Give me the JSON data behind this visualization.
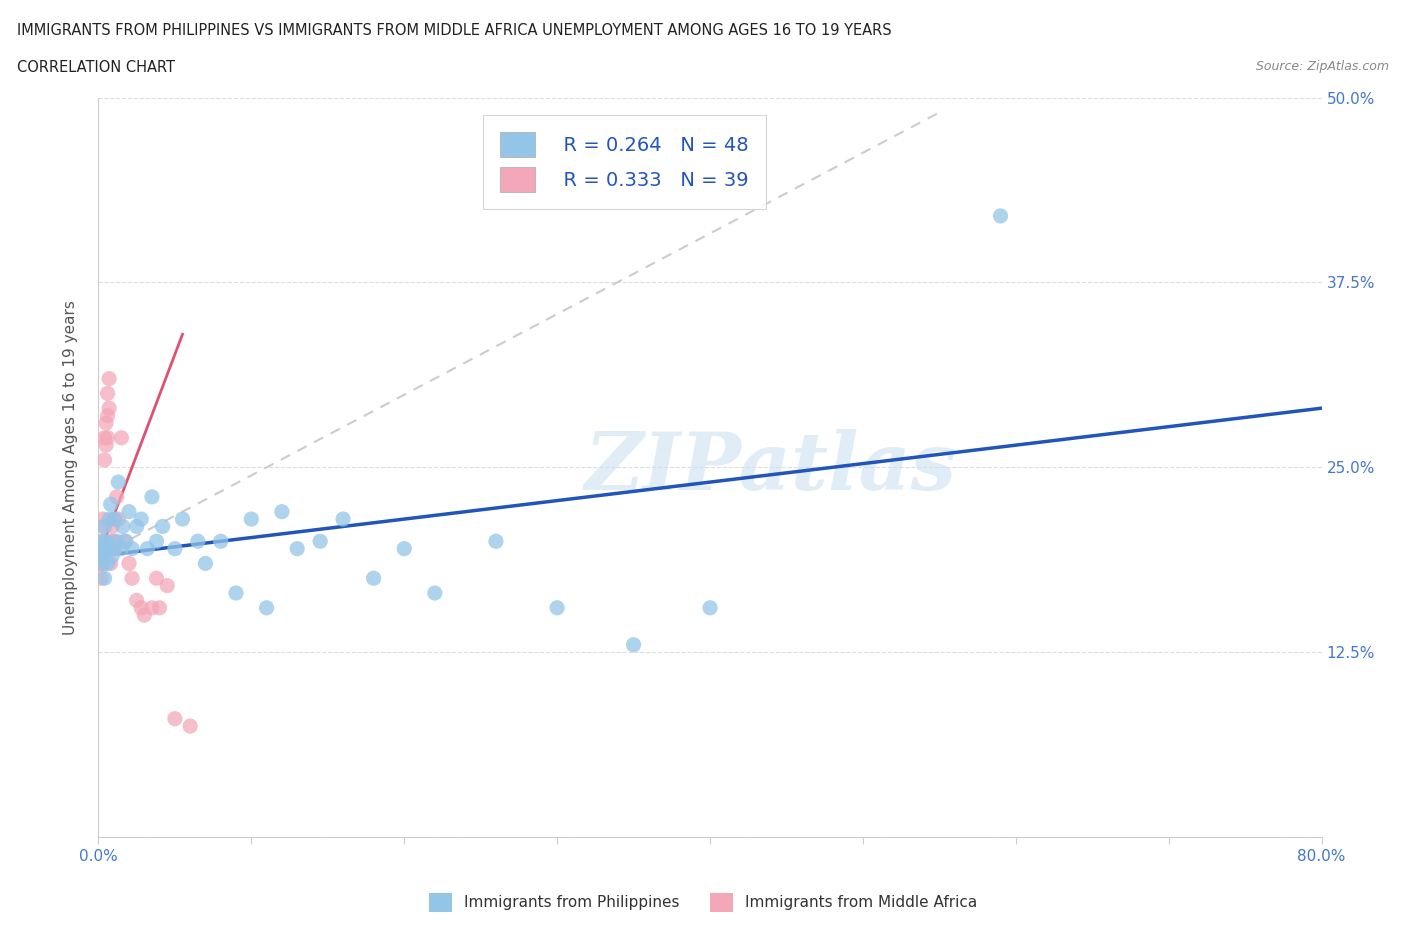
{
  "title_line1": "IMMIGRANTS FROM PHILIPPINES VS IMMIGRANTS FROM MIDDLE AFRICA UNEMPLOYMENT AMONG AGES 16 TO 19 YEARS",
  "title_line2": "CORRELATION CHART",
  "source": "Source: ZipAtlas.com",
  "ylabel": "Unemployment Among Ages 16 to 19 years",
  "xlim": [
    0,
    0.8
  ],
  "ylim": [
    0,
    0.5
  ],
  "xticks": [
    0.0,
    0.1,
    0.2,
    0.3,
    0.4,
    0.5,
    0.6,
    0.7,
    0.8
  ],
  "yticks": [
    0.0,
    0.125,
    0.25,
    0.375,
    0.5
  ],
  "blue_color": "#92c5e8",
  "pink_color": "#f4a7b9",
  "blue_line_color": "#2255bb",
  "pink_line_color": "#e05070",
  "gray_line_color": "#cccccc",
  "R_blue": 0.264,
  "N_blue": 48,
  "R_pink": 0.333,
  "N_pink": 39,
  "legend_label_blue": "Immigrants from Philippines",
  "legend_label_pink": "Immigrants from Middle Africa",
  "watermark": "ZIPatlas",
  "philippines_x": [
    0.001,
    0.002,
    0.003,
    0.003,
    0.004,
    0.004,
    0.005,
    0.005,
    0.006,
    0.007,
    0.007,
    0.008,
    0.009,
    0.01,
    0.011,
    0.012,
    0.013,
    0.015,
    0.016,
    0.018,
    0.02,
    0.022,
    0.025,
    0.028,
    0.032,
    0.035,
    0.038,
    0.042,
    0.05,
    0.055,
    0.065,
    0.07,
    0.08,
    0.09,
    0.1,
    0.11,
    0.12,
    0.13,
    0.145,
    0.16,
    0.18,
    0.2,
    0.22,
    0.26,
    0.3,
    0.35,
    0.4,
    0.59
  ],
  "philippines_y": [
    0.19,
    0.195,
    0.185,
    0.2,
    0.21,
    0.175,
    0.195,
    0.2,
    0.185,
    0.215,
    0.195,
    0.225,
    0.19,
    0.195,
    0.215,
    0.2,
    0.24,
    0.195,
    0.21,
    0.2,
    0.22,
    0.195,
    0.21,
    0.215,
    0.195,
    0.23,
    0.2,
    0.21,
    0.195,
    0.215,
    0.2,
    0.185,
    0.2,
    0.165,
    0.215,
    0.155,
    0.22,
    0.195,
    0.2,
    0.215,
    0.175,
    0.195,
    0.165,
    0.2,
    0.155,
    0.13,
    0.155,
    0.42
  ],
  "africa_x": [
    0.001,
    0.001,
    0.002,
    0.002,
    0.002,
    0.003,
    0.003,
    0.003,
    0.004,
    0.004,
    0.005,
    0.005,
    0.006,
    0.006,
    0.006,
    0.007,
    0.007,
    0.008,
    0.008,
    0.009,
    0.009,
    0.01,
    0.01,
    0.011,
    0.012,
    0.013,
    0.015,
    0.017,
    0.02,
    0.022,
    0.025,
    0.028,
    0.03,
    0.035,
    0.038,
    0.04,
    0.045,
    0.05,
    0.06
  ],
  "africa_y": [
    0.195,
    0.185,
    0.2,
    0.185,
    0.175,
    0.215,
    0.195,
    0.21,
    0.27,
    0.255,
    0.28,
    0.265,
    0.3,
    0.285,
    0.27,
    0.29,
    0.31,
    0.195,
    0.185,
    0.21,
    0.2,
    0.215,
    0.2,
    0.195,
    0.23,
    0.215,
    0.27,
    0.2,
    0.185,
    0.175,
    0.16,
    0.155,
    0.15,
    0.155,
    0.175,
    0.155,
    0.17,
    0.08,
    0.075
  ],
  "pink_line_x0": 0.0,
  "pink_line_y0": 0.19,
  "pink_line_x1": 0.055,
  "pink_line_y1": 0.34,
  "gray_line_x0": 0.0,
  "gray_line_y0": 0.19,
  "gray_line_x1": 0.55,
  "gray_line_y1": 0.49,
  "blue_line_x0": 0.0,
  "blue_line_y0": 0.19,
  "blue_line_x1": 0.8,
  "blue_line_y1": 0.29
}
